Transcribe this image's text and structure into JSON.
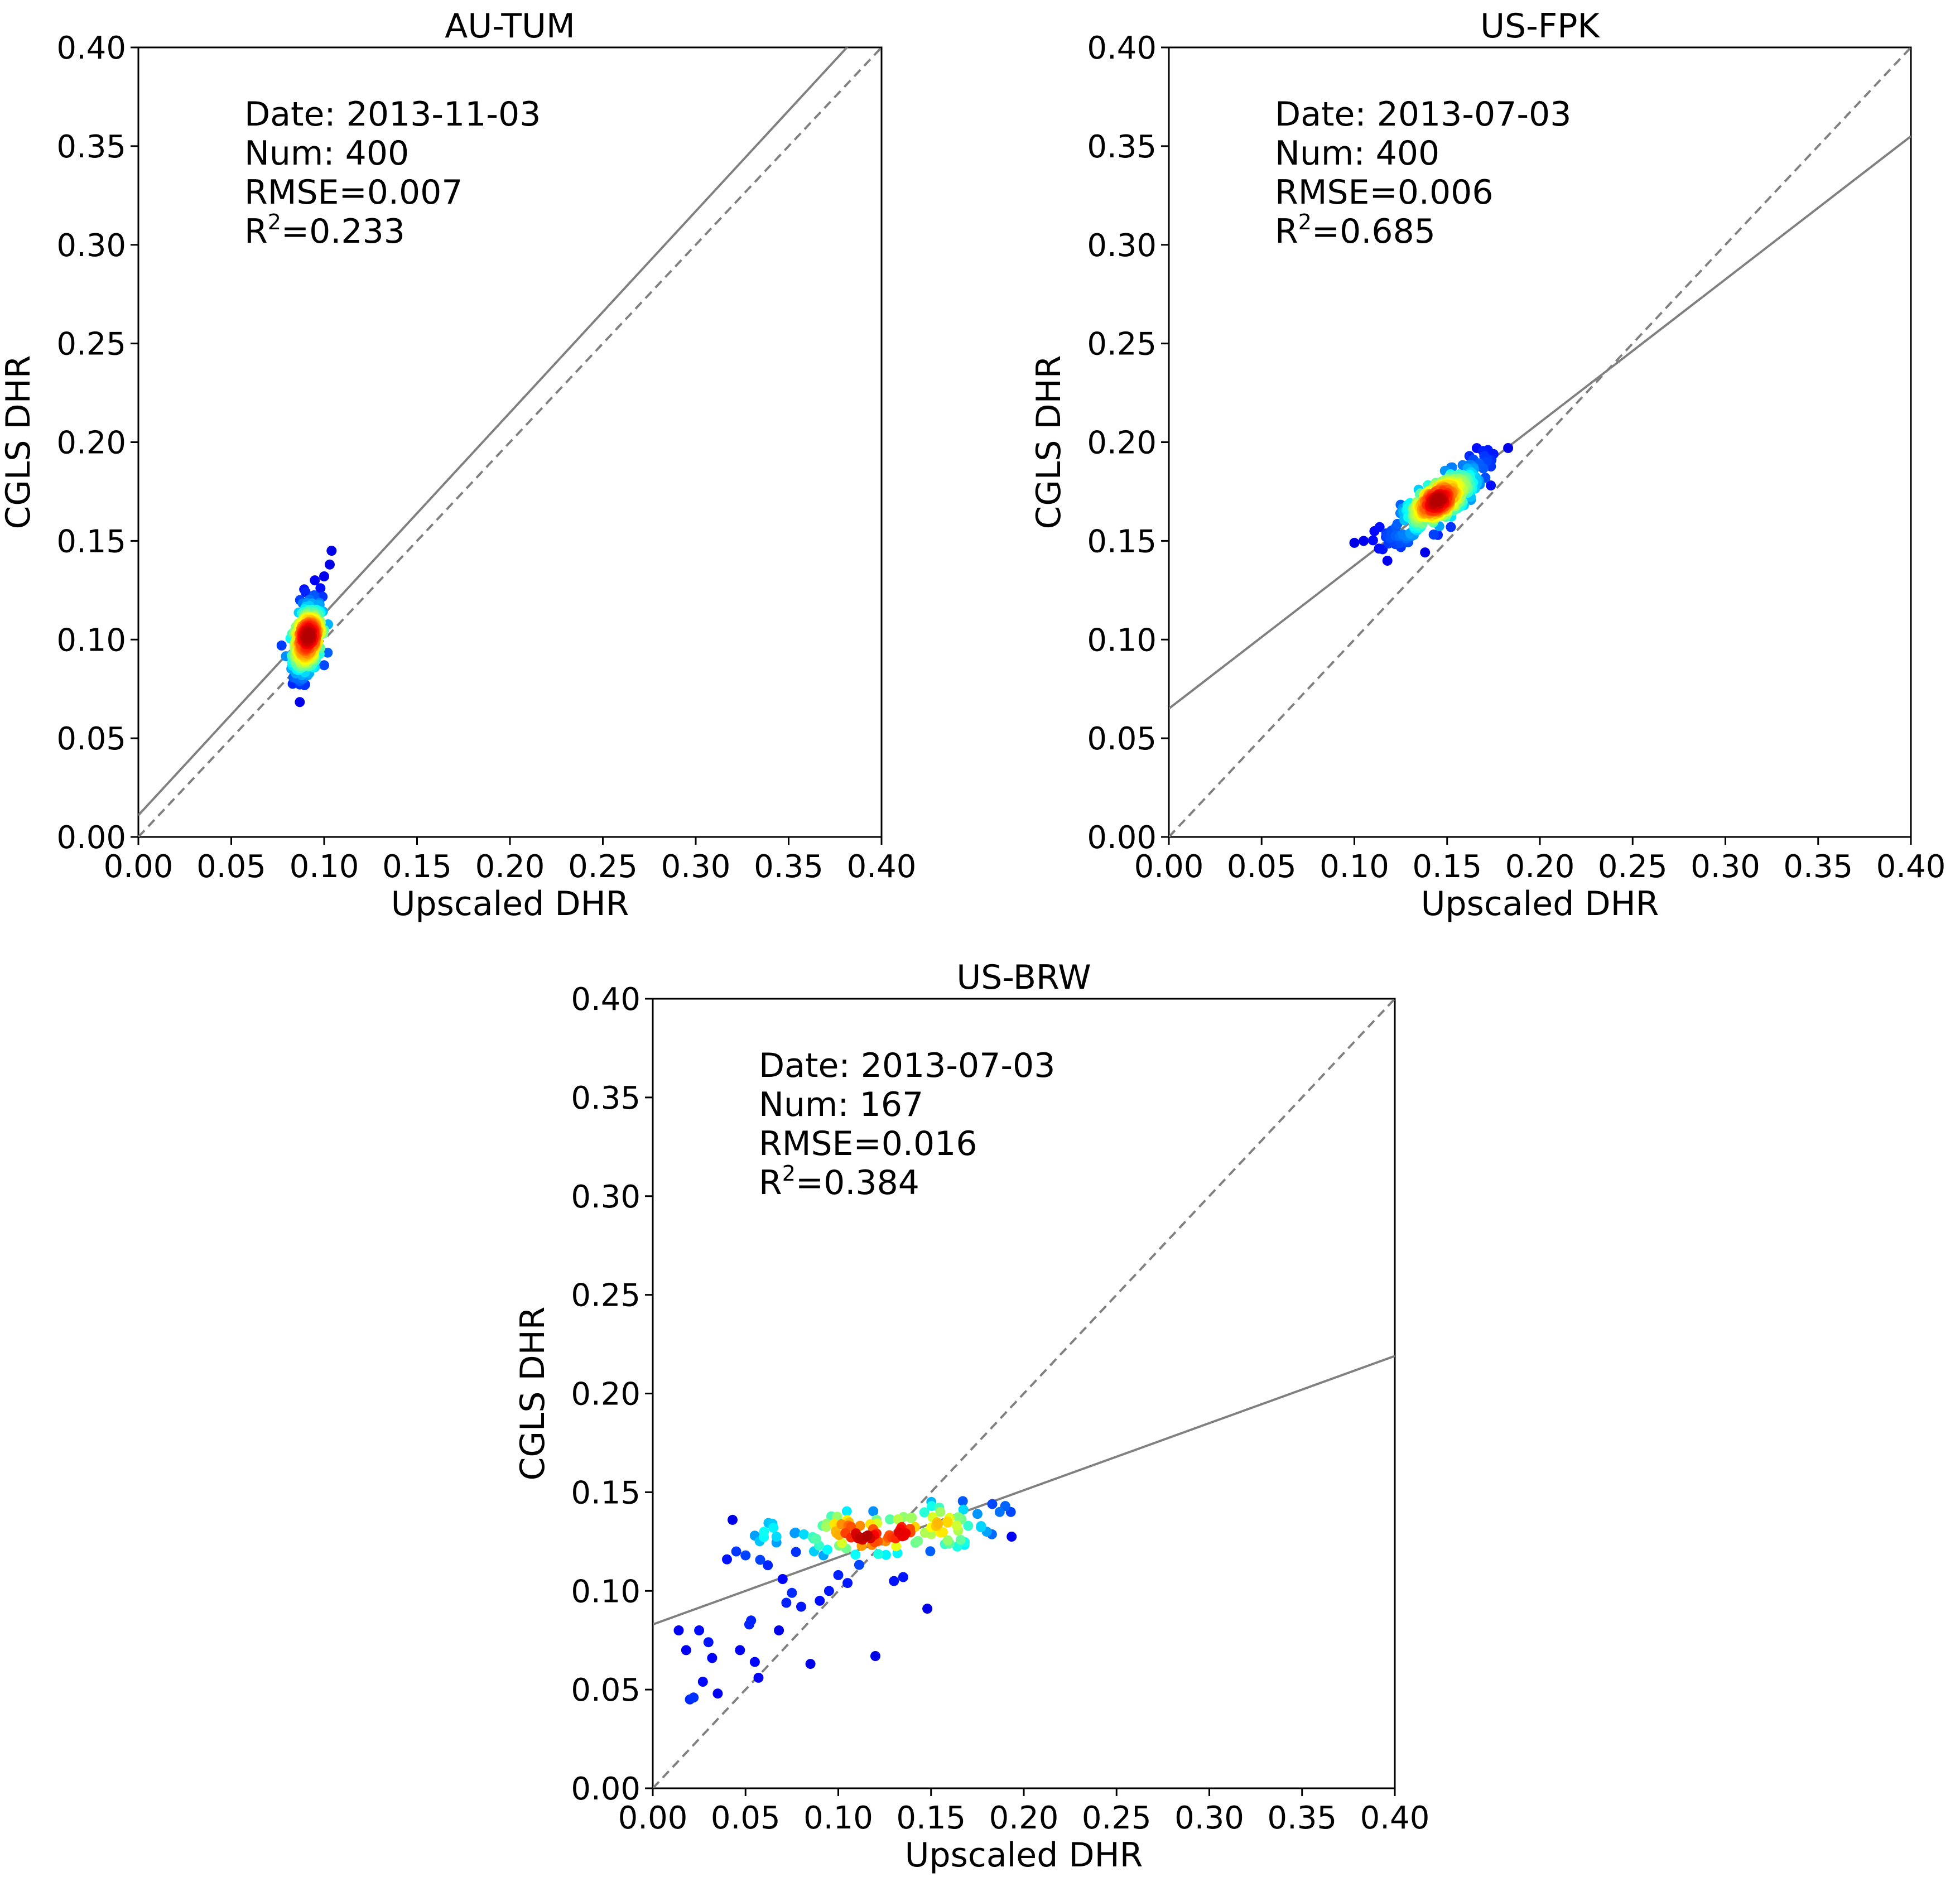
{
  "colors": {
    "fit_line": "#808080",
    "identity_line": "#808080",
    "colormap": "jet"
  },
  "chart_data": [
    {
      "type": "scatter",
      "title": "AU-TUM",
      "xlabel": "Upscaled DHR",
      "ylabel": "CGLS DHR",
      "xlim": [
        0,
        0.4
      ],
      "ylim": [
        0,
        0.4
      ],
      "xticks": [
        "0.00",
        "0.05",
        "0.10",
        "0.15",
        "0.20",
        "0.25",
        "0.30",
        "0.35",
        "0.40"
      ],
      "yticks": [
        "0.00",
        "0.05",
        "0.10",
        "0.15",
        "0.20",
        "0.25",
        "0.30",
        "0.35",
        "0.40"
      ],
      "stats": {
        "date": "Date: 2013-11-03",
        "num": "Num: 400",
        "rmse": "RMSE=0.007",
        "r2_label": "R",
        "r2_sup": "2",
        "r2_value": "=0.233"
      },
      "fit": {
        "slope": 1.02,
        "intercept": 0.011
      },
      "identity": true,
      "cluster": {
        "cx": 0.091,
        "cy": 0.1,
        "sx": 0.004,
        "sy": 0.009,
        "n": 400,
        "rho": 0.4
      },
      "outliers": [
        [
          0.104,
          0.145
        ],
        [
          0.103,
          0.138
        ],
        [
          0.1,
          0.132
        ],
        [
          0.095,
          0.13
        ],
        [
          0.09,
          0.124
        ],
        [
          0.087,
          0.12
        ],
        [
          0.098,
          0.126
        ],
        [
          0.088,
          0.082
        ],
        [
          0.092,
          0.083
        ],
        [
          0.095,
          0.086
        ]
      ]
    },
    {
      "type": "scatter",
      "title": "US-FPK",
      "xlabel": "Upscaled DHR",
      "ylabel": "CGLS DHR",
      "xlim": [
        0,
        0.4
      ],
      "ylim": [
        0,
        0.4
      ],
      "xticks": [
        "0.00",
        "0.05",
        "0.10",
        "0.15",
        "0.20",
        "0.25",
        "0.30",
        "0.35",
        "0.40"
      ],
      "yticks": [
        "0.00",
        "0.05",
        "0.10",
        "0.15",
        "0.20",
        "0.25",
        "0.30",
        "0.35",
        "0.40"
      ],
      "stats": {
        "date": "Date: 2013-07-03",
        "num": "Num: 400",
        "rmse": "RMSE=0.006",
        "r2_label": "R",
        "r2_sup": "2",
        "r2_value": "=0.685"
      },
      "fit": {
        "slope": 0.725,
        "intercept": 0.065
      },
      "identity": true,
      "cluster": {
        "cx": 0.145,
        "cy": 0.17,
        "sx": 0.012,
        "sy": 0.009,
        "n": 400,
        "rho": 0.8
      },
      "outliers": [
        [
          0.1,
          0.149
        ],
        [
          0.105,
          0.15
        ],
        [
          0.117,
          0.152
        ],
        [
          0.12,
          0.152
        ],
        [
          0.172,
          0.196
        ],
        [
          0.17,
          0.193
        ],
        [
          0.166,
          0.197
        ],
        [
          0.175,
          0.194
        ],
        [
          0.162,
          0.193
        ],
        [
          0.145,
          0.153
        ],
        [
          0.152,
          0.157
        ]
      ]
    },
    {
      "type": "scatter",
      "title": "US-BRW",
      "xlabel": "Upscaled DHR",
      "ylabel": "CGLS DHR",
      "xlim": [
        0,
        0.4
      ],
      "ylim": [
        0,
        0.4
      ],
      "xticks": [
        "0.00",
        "0.05",
        "0.10",
        "0.15",
        "0.20",
        "0.25",
        "0.30",
        "0.35",
        "0.40"
      ],
      "yticks": [
        "0.00",
        "0.05",
        "0.10",
        "0.15",
        "0.20",
        "0.25",
        "0.30",
        "0.35",
        "0.40"
      ],
      "stats": {
        "date": "Date: 2013-07-03",
        "num": "Num: 167",
        "rmse": "RMSE=0.016",
        "r2_label": "R",
        "r2_sup": "2",
        "r2_value": "=0.384"
      },
      "fit": {
        "slope": 0.34,
        "intercept": 0.083
      },
      "identity": true,
      "cluster": {
        "cx": 0.125,
        "cy": 0.129,
        "sx": 0.03,
        "sy": 0.007,
        "n": 120,
        "rho": 0.3
      },
      "outliers": [
        [
          0.014,
          0.08
        ],
        [
          0.018,
          0.07
        ],
        [
          0.02,
          0.045
        ],
        [
          0.022,
          0.046
        ],
        [
          0.025,
          0.08
        ],
        [
          0.027,
          0.054
        ],
        [
          0.03,
          0.074
        ],
        [
          0.032,
          0.066
        ],
        [
          0.035,
          0.048
        ],
        [
          0.04,
          0.116
        ],
        [
          0.043,
          0.136
        ],
        [
          0.045,
          0.12
        ],
        [
          0.047,
          0.07
        ],
        [
          0.05,
          0.118
        ],
        [
          0.052,
          0.083
        ],
        [
          0.053,
          0.085
        ],
        [
          0.055,
          0.128
        ],
        [
          0.055,
          0.064
        ],
        [
          0.057,
          0.056
        ],
        [
          0.06,
          0.13
        ],
        [
          0.062,
          0.113
        ],
        [
          0.065,
          0.132
        ],
        [
          0.068,
          0.08
        ],
        [
          0.07,
          0.106
        ],
        [
          0.072,
          0.094
        ],
        [
          0.075,
          0.099
        ],
        [
          0.08,
          0.092
        ],
        [
          0.085,
          0.063
        ],
        [
          0.09,
          0.095
        ],
        [
          0.092,
          0.118
        ],
        [
          0.095,
          0.1
        ],
        [
          0.1,
          0.108
        ],
        [
          0.105,
          0.104
        ],
        [
          0.12,
          0.067
        ],
        [
          0.13,
          0.105
        ],
        [
          0.135,
          0.107
        ],
        [
          0.148,
          0.091
        ],
        [
          0.17,
          0.133
        ],
        [
          0.175,
          0.139
        ],
        [
          0.18,
          0.13
        ],
        [
          0.183,
          0.144
        ],
        [
          0.187,
          0.14
        ],
        [
          0.19,
          0.143
        ],
        [
          0.193,
          0.14
        ],
        [
          0.16,
          0.137
        ],
        [
          0.155,
          0.14
        ]
      ]
    }
  ]
}
